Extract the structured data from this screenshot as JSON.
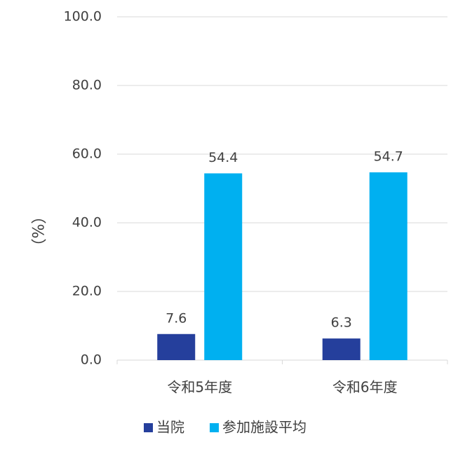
{
  "chart_data": {
    "type": "bar",
    "y_label": "（%）",
    "categories": [
      "令和5年度",
      "令和6年度"
    ],
    "series": [
      {
        "name": "当院",
        "color": "#253f9c",
        "values": [
          7.6,
          6.3
        ]
      },
      {
        "name": "参加施設平均",
        "color": "#00b0f0",
        "values": [
          54.4,
          54.7
        ]
      }
    ],
    "ylim": [
      0,
      100
    ],
    "yticks": [
      {
        "value": 0,
        "label": "0.0"
      },
      {
        "value": 20,
        "label": "20.0"
      },
      {
        "value": 40,
        "label": "40.0"
      },
      {
        "value": 60,
        "label": "60.0"
      },
      {
        "value": 80,
        "label": "80.0"
      },
      {
        "value": 100,
        "label": "100.0"
      }
    ],
    "grid": true,
    "legend": "bottom"
  }
}
